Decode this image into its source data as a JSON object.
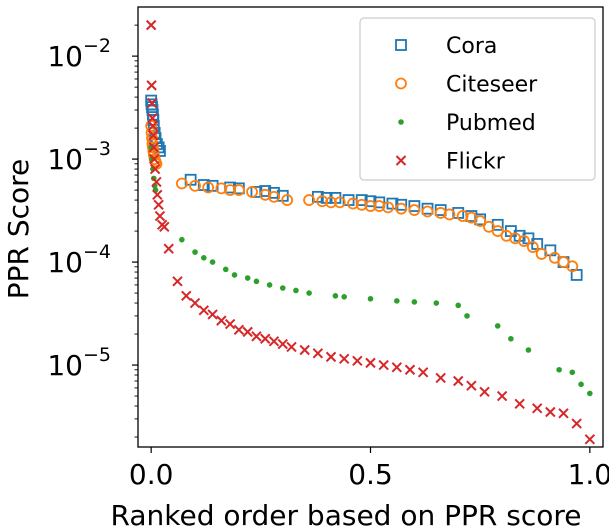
{
  "chart_data": {
    "type": "scatter",
    "title": "",
    "xlabel": "Ranked order based on PPR score",
    "ylabel": "PPR Score",
    "xlim": [
      -0.03,
      1.03
    ],
    "ylim": [
      1.6e-06,
      0.03
    ],
    "yscale": "log",
    "grid": false,
    "legend_position": "top-right",
    "x_ticks": [
      {
        "value": 0.0,
        "label": "0.0"
      },
      {
        "value": 0.5,
        "label": "0.5"
      },
      {
        "value": 1.0,
        "label": "1.0"
      }
    ],
    "y_ticks": [
      {
        "value": 0.01,
        "label": "10",
        "exp": "−2"
      },
      {
        "value": 0.001,
        "label": "10",
        "exp": "−3"
      },
      {
        "value": 0.0001,
        "label": "10",
        "exp": "−4"
      },
      {
        "value": 1e-05,
        "label": "10",
        "exp": "−5"
      }
    ],
    "series": [
      {
        "name": "Cora",
        "marker": "square",
        "color": "#1f77b4",
        "points": [
          [
            0.0,
            0.0037
          ],
          [
            0.001,
            0.0034
          ],
          [
            0.002,
            0.0032
          ],
          [
            0.003,
            0.003
          ],
          [
            0.004,
            0.0027
          ],
          [
            0.005,
            0.0024
          ],
          [
            0.006,
            0.0021
          ],
          [
            0.008,
            0.0018
          ],
          [
            0.01,
            0.0016
          ],
          [
            0.013,
            0.0014
          ],
          [
            0.017,
            0.0013
          ],
          [
            0.02,
            0.0012
          ],
          [
            0.09,
            0.00063
          ],
          [
            0.12,
            0.00056
          ],
          [
            0.14,
            0.00055
          ],
          [
            0.18,
            0.00053
          ],
          [
            0.2,
            0.00052
          ],
          [
            0.24,
            0.00048
          ],
          [
            0.26,
            0.00049
          ],
          [
            0.28,
            0.00047
          ],
          [
            0.3,
            0.00044
          ],
          [
            0.38,
            0.00043
          ],
          [
            0.4,
            0.00042
          ],
          [
            0.42,
            0.00042
          ],
          [
            0.45,
            0.0004
          ],
          [
            0.48,
            0.0004
          ],
          [
            0.5,
            0.00039
          ],
          [
            0.52,
            0.00038
          ],
          [
            0.55,
            0.00037
          ],
          [
            0.57,
            0.00036
          ],
          [
            0.6,
            0.00035
          ],
          [
            0.63,
            0.00033
          ],
          [
            0.66,
            0.00032
          ],
          [
            0.7,
            0.0003
          ],
          [
            0.73,
            0.00028
          ],
          [
            0.75,
            0.00026
          ],
          [
            0.79,
            0.00023
          ],
          [
            0.82,
            0.0002
          ],
          [
            0.84,
            0.00018
          ],
          [
            0.86,
            0.00017
          ],
          [
            0.88,
            0.00015
          ],
          [
            0.91,
            0.00013
          ],
          [
            0.94,
            0.0001
          ],
          [
            0.97,
            7.5e-05
          ]
        ]
      },
      {
        "name": "Citeseer",
        "marker": "circle",
        "color": "#ff7f0e",
        "points": [
          [
            0.0,
            0.0021
          ],
          [
            0.001,
            0.0018
          ],
          [
            0.002,
            0.0016
          ],
          [
            0.003,
            0.0014
          ],
          [
            0.004,
            0.0013
          ],
          [
            0.005,
            0.0012
          ],
          [
            0.006,
            0.0011
          ],
          [
            0.008,
            0.001
          ],
          [
            0.01,
            0.00095
          ],
          [
            0.012,
            0.0009
          ],
          [
            0.07,
            0.00058
          ],
          [
            0.1,
            0.00055
          ],
          [
            0.13,
            0.00053
          ],
          [
            0.16,
            0.00052
          ],
          [
            0.18,
            0.0005
          ],
          [
            0.2,
            0.0005
          ],
          [
            0.23,
            0.00048
          ],
          [
            0.26,
            0.00045
          ],
          [
            0.28,
            0.00043
          ],
          [
            0.31,
            0.0004
          ],
          [
            0.36,
            0.0004
          ],
          [
            0.39,
            0.00039
          ],
          [
            0.41,
            0.00038
          ],
          [
            0.43,
            0.00038
          ],
          [
            0.46,
            0.00037
          ],
          [
            0.48,
            0.00036
          ],
          [
            0.5,
            0.00035
          ],
          [
            0.52,
            0.00035
          ],
          [
            0.54,
            0.00034
          ],
          [
            0.57,
            0.00033
          ],
          [
            0.6,
            0.00032
          ],
          [
            0.63,
            0.00031
          ],
          [
            0.66,
            0.0003
          ],
          [
            0.68,
            0.00029
          ],
          [
            0.71,
            0.00028
          ],
          [
            0.73,
            0.00027
          ],
          [
            0.75,
            0.00025
          ],
          [
            0.77,
            0.00022
          ],
          [
            0.79,
            0.0002
          ],
          [
            0.81,
            0.00018
          ],
          [
            0.83,
            0.00017
          ],
          [
            0.85,
            0.00016
          ],
          [
            0.87,
            0.00014
          ],
          [
            0.89,
            0.00012
          ],
          [
            0.92,
            0.00011
          ],
          [
            0.94,
            0.0001
          ],
          [
            0.96,
            9.1e-05
          ]
        ]
      },
      {
        "name": "Pubmed",
        "marker": "dot",
        "color": "#2ca02c",
        "points": [
          [
            0.0,
            0.0013
          ],
          [
            0.002,
            0.001
          ],
          [
            0.004,
            0.0008
          ],
          [
            0.006,
            0.00065
          ],
          [
            0.008,
            0.00055
          ],
          [
            0.01,
            0.0005
          ],
          [
            0.07,
            0.000165
          ],
          [
            0.1,
            0.000125
          ],
          [
            0.12,
            0.00011
          ],
          [
            0.14,
            0.0001
          ],
          [
            0.17,
            8.5e-05
          ],
          [
            0.19,
            7.5e-05
          ],
          [
            0.22,
            7e-05
          ],
          [
            0.24,
            6.5e-05
          ],
          [
            0.27,
            6e-05
          ],
          [
            0.3,
            5.6e-05
          ],
          [
            0.33,
            5.3e-05
          ],
          [
            0.36,
            5e-05
          ],
          [
            0.42,
            4.7e-05
          ],
          [
            0.44,
            4.6e-05
          ],
          [
            0.5,
            4.4e-05
          ],
          [
            0.56,
            4.2e-05
          ],
          [
            0.6,
            4.1e-05
          ],
          [
            0.65,
            4e-05
          ],
          [
            0.7,
            3.8e-05
          ],
          [
            0.72,
            3e-05
          ],
          [
            0.79,
            2.4e-05
          ],
          [
            0.82,
            1.8e-05
          ],
          [
            0.86,
            1.4e-05
          ],
          [
            0.93,
            9e-06
          ],
          [
            0.96,
            8.5e-06
          ],
          [
            0.98,
            6.5e-06
          ],
          [
            1.0,
            5.3e-06
          ]
        ]
      },
      {
        "name": "Flickr",
        "marker": "x",
        "color": "#d62728",
        "points": [
          [
            0.0,
            0.02
          ],
          [
            0.001,
            0.0052
          ],
          [
            0.002,
            0.0035
          ],
          [
            0.003,
            0.0025
          ],
          [
            0.004,
            0.0021
          ],
          [
            0.005,
            0.0017
          ],
          [
            0.006,
            0.0013
          ],
          [
            0.007,
            0.001
          ],
          [
            0.009,
            0.0008
          ],
          [
            0.012,
            0.0006
          ],
          [
            0.014,
            0.00045
          ],
          [
            0.017,
            0.00036
          ],
          [
            0.02,
            0.00028
          ],
          [
            0.025,
            0.00023
          ],
          [
            0.03,
            0.00022
          ],
          [
            0.04,
            0.000135
          ],
          [
            0.06,
            6.5e-05
          ],
          [
            0.08,
            4.7e-05
          ],
          [
            0.1,
            4e-05
          ],
          [
            0.12,
            3.4e-05
          ],
          [
            0.14,
            3.1e-05
          ],
          [
            0.16,
            2.7e-05
          ],
          [
            0.18,
            2.5e-05
          ],
          [
            0.2,
            2.2e-05
          ],
          [
            0.22,
            2.1e-05
          ],
          [
            0.24,
            1.9e-05
          ],
          [
            0.26,
            1.8e-05
          ],
          [
            0.28,
            1.7e-05
          ],
          [
            0.3,
            1.6e-05
          ],
          [
            0.32,
            1.5e-05
          ],
          [
            0.35,
            1.4e-05
          ],
          [
            0.38,
            1.3e-05
          ],
          [
            0.41,
            1.2e-05
          ],
          [
            0.44,
            1.15e-05
          ],
          [
            0.47,
            1.1e-05
          ],
          [
            0.5,
            1.05e-05
          ],
          [
            0.53,
            1e-05
          ],
          [
            0.56,
            9.5e-06
          ],
          [
            0.59,
            9e-06
          ],
          [
            0.62,
            8.5e-06
          ],
          [
            0.66,
            7.5e-06
          ],
          [
            0.7,
            7e-06
          ],
          [
            0.73,
            6.3e-06
          ],
          [
            0.76,
            5.5e-06
          ],
          [
            0.8,
            5e-06
          ],
          [
            0.84,
            4.2e-06
          ],
          [
            0.88,
            3.8e-06
          ],
          [
            0.91,
            3.5e-06
          ],
          [
            0.94,
            3.4e-06
          ],
          [
            0.97,
            2.7e-06
          ],
          [
            1.0,
            1.9e-06
          ]
        ]
      }
    ]
  }
}
